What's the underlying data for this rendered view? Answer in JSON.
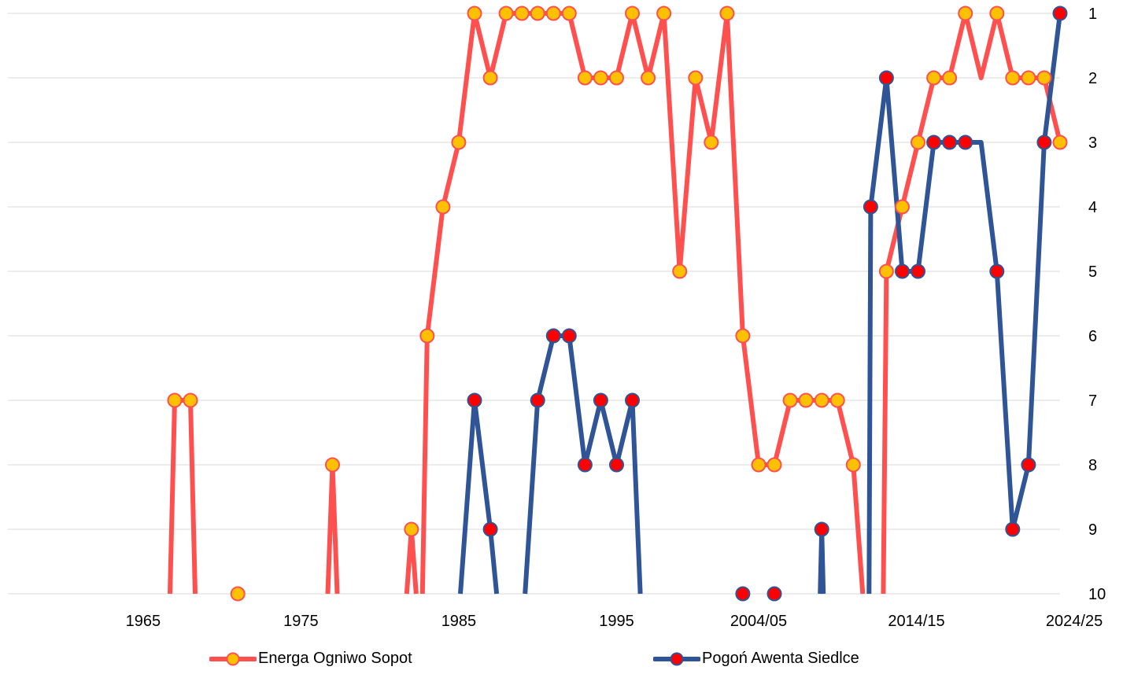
{
  "chart_data": {
    "type": "line",
    "title": "",
    "xlabel": "",
    "ylabel": "",
    "x_range": [
      1957,
      2025
    ],
    "y_range": [
      1,
      10
    ],
    "y_inverted": true,
    "y_axis_side": "right",
    "yticks": [
      "1",
      "2",
      "3",
      "4",
      "5",
      "6",
      "7",
      "8",
      "9",
      "10"
    ],
    "xticks": [
      {
        "x": 1965,
        "label": "1965"
      },
      {
        "x": 1975,
        "label": "1975"
      },
      {
        "x": 1985,
        "label": "1985"
      },
      {
        "x": 1995,
        "label": "1995"
      },
      {
        "x": 2004,
        "label": "2004/05"
      },
      {
        "x": 2014,
        "label": "2014/15"
      },
      {
        "x": 2024,
        "label": "2024/25"
      }
    ],
    "grid": "horizontal",
    "legend_position": "bottom",
    "series": [
      {
        "name": "Energa Ogniwo Sopot",
        "line_color": "#ff5050",
        "marker_fill": "#ffc000",
        "marker_edge": "#ff5050",
        "segments": [
          [
            [
              1966.7,
              10
            ],
            [
              1967,
              7
            ],
            [
              1968,
              7
            ],
            [
              1968.3,
              10
            ]
          ],
          [
            [
              1976.7,
              10
            ],
            [
              1977,
              8
            ],
            [
              1977.3,
              10
            ]
          ],
          [
            [
              1981.7,
              10
            ],
            [
              1982,
              9
            ],
            [
              1982.3,
              10
            ]
          ],
          [
            [
              1982.7,
              10
            ],
            [
              1983,
              6
            ],
            [
              1984,
              4
            ],
            [
              1985,
              3
            ],
            [
              1986,
              1
            ],
            [
              1987,
              2
            ],
            [
              1988,
              1
            ],
            [
              1989,
              1
            ],
            [
              1990,
              1
            ],
            [
              1991,
              1
            ],
            [
              1992,
              1
            ],
            [
              1993,
              2
            ],
            [
              1994,
              2
            ],
            [
              1995,
              2
            ],
            [
              1996,
              1
            ],
            [
              1997,
              2
            ],
            [
              1998,
              1
            ],
            [
              1999,
              5
            ],
            [
              2000,
              2
            ],
            [
              2001,
              3
            ],
            [
              2002,
              1
            ],
            [
              2003,
              6
            ],
            [
              2004,
              8
            ],
            [
              2005,
              8
            ],
            [
              2006,
              7
            ],
            [
              2007,
              7
            ],
            [
              2008,
              7
            ],
            [
              2009,
              7
            ],
            [
              2010,
              8
            ],
            [
              2010.6,
              10
            ]
          ],
          [
            [
              2011.9,
              10
            ],
            [
              2012.1,
              5
            ],
            [
              2013.1,
              4
            ],
            [
              2014.1,
              3
            ],
            [
              2015.1,
              2
            ],
            [
              2016.1,
              2
            ],
            [
              2017.1,
              1
            ],
            [
              2018.1,
              2
            ],
            [
              2019.1,
              1
            ],
            [
              2020.1,
              2
            ],
            [
              2021.1,
              2
            ],
            [
              2022.1,
              2
            ],
            [
              2023.1,
              3
            ]
          ]
        ],
        "markers": [
          [
            1967,
            7
          ],
          [
            1968,
            7
          ],
          [
            1971,
            10
          ],
          [
            1977,
            8
          ],
          [
            1982,
            9
          ],
          [
            1983,
            6
          ],
          [
            1984,
            4
          ],
          [
            1985,
            3
          ],
          [
            1986,
            1
          ],
          [
            1987,
            2
          ],
          [
            1988,
            1
          ],
          [
            1989,
            1
          ],
          [
            1990,
            1
          ],
          [
            1991,
            1
          ],
          [
            1992,
            1
          ],
          [
            1993,
            2
          ],
          [
            1994,
            2
          ],
          [
            1995,
            2
          ],
          [
            1996,
            1
          ],
          [
            1997,
            2
          ],
          [
            1998,
            1
          ],
          [
            1999,
            5
          ],
          [
            2000,
            2
          ],
          [
            2001,
            3
          ],
          [
            2002,
            1
          ],
          [
            2003,
            6
          ],
          [
            2004,
            8
          ],
          [
            2005,
            8
          ],
          [
            2006,
            7
          ],
          [
            2007,
            7
          ],
          [
            2008,
            7
          ],
          [
            2009,
            7
          ],
          [
            2010,
            8
          ],
          [
            2012.1,
            5
          ],
          [
            2013.1,
            4
          ],
          [
            2014.1,
            3
          ],
          [
            2015.1,
            2
          ],
          [
            2016.1,
            2
          ],
          [
            2017.1,
            1
          ],
          [
            2019.1,
            1
          ],
          [
            2020.1,
            2
          ],
          [
            2021.1,
            2
          ],
          [
            2022.1,
            2
          ],
          [
            2023.1,
            3
          ]
        ]
      },
      {
        "name": "Pogoń Awenta Siedlce",
        "line_color": "#2f5597",
        "marker_fill": "#ff0000",
        "marker_edge": "#2f5597",
        "segments": [
          [
            [
              1985.1,
              10
            ],
            [
              1986,
              7
            ],
            [
              1987,
              9
            ],
            [
              1987.4,
              10
            ]
          ],
          [
            [
              1989.2,
              10
            ],
            [
              1990,
              7
            ],
            [
              1991,
              6
            ],
            [
              1992,
              6
            ],
            [
              1993,
              8
            ],
            [
              1994,
              7
            ],
            [
              1995,
              8
            ],
            [
              1996,
              7
            ],
            [
              1996.5,
              10
            ]
          ],
          [
            [
              2007.9,
              10
            ],
            [
              2008,
              9
            ],
            [
              2008.1,
              10
            ]
          ],
          [
            [
              2011,
              10
            ],
            [
              2011.1,
              4
            ],
            [
              2012.1,
              2
            ],
            [
              2013.1,
              5
            ],
            [
              2014.1,
              5
            ],
            [
              2015.1,
              3
            ],
            [
              2016.1,
              3
            ],
            [
              2017.1,
              3
            ],
            [
              2018.1,
              3
            ],
            [
              2019.1,
              5
            ],
            [
              2020.1,
              9
            ],
            [
              2021.1,
              8
            ],
            [
              2022.1,
              3
            ],
            [
              2023.1,
              1
            ]
          ]
        ],
        "markers": [
          [
            1986,
            7
          ],
          [
            1987,
            9
          ],
          [
            1990,
            7
          ],
          [
            1991,
            6
          ],
          [
            1992,
            6
          ],
          [
            1993,
            8
          ],
          [
            1994,
            7
          ],
          [
            1995,
            8
          ],
          [
            1996,
            7
          ],
          [
            2003,
            10
          ],
          [
            2005,
            10
          ],
          [
            2008,
            9
          ],
          [
            2011.1,
            4
          ],
          [
            2012.1,
            2
          ],
          [
            2013.1,
            5
          ],
          [
            2014.1,
            5
          ],
          [
            2015.1,
            3
          ],
          [
            2016.1,
            3
          ],
          [
            2017.1,
            3
          ],
          [
            2019.1,
            5
          ],
          [
            2020.1,
            9
          ],
          [
            2021.1,
            8
          ],
          [
            2022.1,
            3
          ],
          [
            2023.1,
            1
          ]
        ]
      }
    ]
  }
}
